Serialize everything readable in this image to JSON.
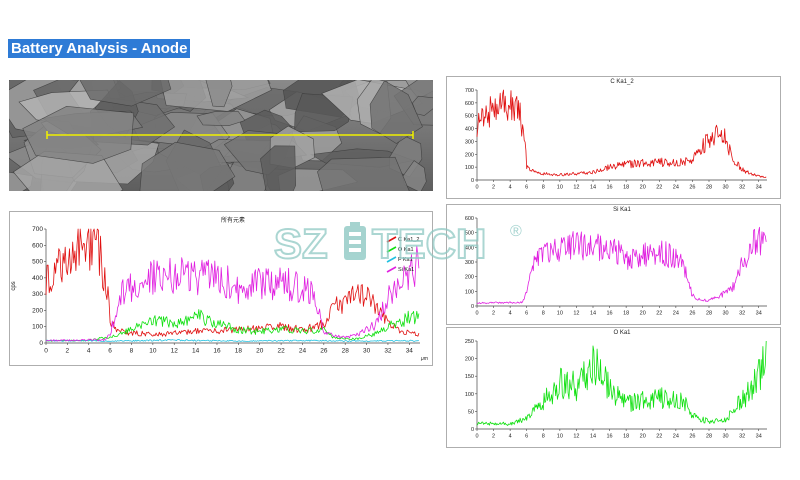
{
  "page_title": "Battery Analysis - Anode",
  "watermark": {
    "text_left": "SZ",
    "text_right": "TECH",
    "mark": "®"
  },
  "colors": {
    "title_bg": "#2e7bd6",
    "C": "#e01010",
    "O": "#10e010",
    "F": "#20c0e0",
    "Si": "#e020e0",
    "line_scan": "#f0f000",
    "watermark": "#8fc9c4"
  },
  "chart_data": [
    {
      "id": "combined",
      "type": "line",
      "title": "所有元素",
      "ylabel": "cps",
      "xunit": "μm",
      "xlim": [
        0,
        35
      ],
      "ylim": [
        0,
        700
      ],
      "xticks": [
        0,
        2,
        4,
        6,
        8,
        10,
        12,
        14,
        16,
        18,
        20,
        22,
        24,
        26,
        28,
        30,
        32,
        34
      ],
      "yticks": [
        0,
        100,
        200,
        300,
        400,
        500,
        600,
        700
      ],
      "legend_position": "right",
      "series": [
        {
          "name": "C Ka1_2",
          "color": "#e01010",
          "profile": [
            [
              0,
              380
            ],
            [
              1,
              450
            ],
            [
              2,
              560
            ],
            [
              3,
              600
            ],
            [
              4,
              620
            ],
            [
              5,
              560
            ],
            [
              5.8,
              300
            ],
            [
              6,
              120
            ],
            [
              7,
              70
            ],
            [
              10,
              50
            ],
            [
              14,
              70
            ],
            [
              18,
              80
            ],
            [
              20,
              90
            ],
            [
              22,
              100
            ],
            [
              24,
              80
            ],
            [
              26,
              120
            ],
            [
              27,
              220
            ],
            [
              28,
              260
            ],
            [
              29,
              300
            ],
            [
              30,
              300
            ],
            [
              31,
              200
            ],
            [
              32,
              120
            ],
            [
              33,
              80
            ],
            [
              34,
              60
            ],
            [
              34.8,
              50
            ]
          ]
        },
        {
          "name": "O Ka1",
          "color": "#10e010",
          "profile": [
            [
              0,
              15
            ],
            [
              4,
              15
            ],
            [
              6,
              40
            ],
            [
              8,
              80
            ],
            [
              10,
              140
            ],
            [
              12,
              120
            ],
            [
              14,
              170
            ],
            [
              16,
              120
            ],
            [
              18,
              80
            ],
            [
              20,
              70
            ],
            [
              22,
              90
            ],
            [
              24,
              70
            ],
            [
              26,
              80
            ],
            [
              27,
              30
            ],
            [
              29,
              25
            ],
            [
              31,
              60
            ],
            [
              32,
              100
            ],
            [
              33,
              120
            ],
            [
              34,
              160
            ],
            [
              34.8,
              160
            ]
          ]
        },
        {
          "name": "F Ka1",
          "color": "#20c0e0",
          "profile": [
            [
              0,
              15
            ],
            [
              6,
              12
            ],
            [
              12,
              18
            ],
            [
              18,
              12
            ],
            [
              24,
              15
            ],
            [
              30,
              12
            ],
            [
              34.8,
              14
            ]
          ]
        },
        {
          "name": "Si Ka1",
          "color": "#e020e0",
          "profile": [
            [
              0,
              15
            ],
            [
              5.5,
              20
            ],
            [
              6,
              60
            ],
            [
              7,
              300
            ],
            [
              8,
              350
            ],
            [
              10,
              400
            ],
            [
              12,
              420
            ],
            [
              14,
              390
            ],
            [
              16,
              420
            ],
            [
              18,
              330
            ],
            [
              20,
              360
            ],
            [
              22,
              370
            ],
            [
              24,
              340
            ],
            [
              25,
              290
            ],
            [
              26,
              80
            ],
            [
              27,
              40
            ],
            [
              28,
              35
            ],
            [
              29,
              45
            ],
            [
              30,
              80
            ],
            [
              31,
              120
            ],
            [
              32,
              280
            ],
            [
              33,
              380
            ],
            [
              34,
              420
            ],
            [
              34.8,
              480
            ]
          ]
        }
      ]
    },
    {
      "id": "c",
      "type": "line",
      "title": "C Ka1_2",
      "xlim": [
        0,
        35
      ],
      "ylim": [
        0,
        700
      ],
      "xticks": [
        0,
        2,
        4,
        6,
        8,
        10,
        12,
        14,
        16,
        18,
        20,
        22,
        24,
        26,
        28,
        30,
        32,
        34
      ],
      "yticks": [
        0,
        100,
        200,
        300,
        400,
        500,
        600,
        700
      ],
      "series": [
        {
          "name": "C Ka1_2",
          "color": "#e01010",
          "profile": [
            [
              0,
              420
            ],
            [
              1,
              470
            ],
            [
              2,
              560
            ],
            [
              3,
              600
            ],
            [
              4,
              610
            ],
            [
              5,
              560
            ],
            [
              5.8,
              300
            ],
            [
              6,
              100
            ],
            [
              7,
              60
            ],
            [
              8,
              50
            ],
            [
              10,
              40
            ],
            [
              12,
              50
            ],
            [
              14,
              60
            ],
            [
              16,
              100
            ],
            [
              18,
              120
            ],
            [
              20,
              130
            ],
            [
              22,
              140
            ],
            [
              24,
              130
            ],
            [
              26,
              160
            ],
            [
              27,
              260
            ],
            [
              28,
              300
            ],
            [
              29,
              350
            ],
            [
              30,
              330
            ],
            [
              31,
              150
            ],
            [
              32,
              80
            ],
            [
              33,
              50
            ],
            [
              34,
              30
            ],
            [
              34.8,
              20
            ]
          ]
        }
      ]
    },
    {
      "id": "si",
      "type": "line",
      "title": "Si Ka1",
      "xlim": [
        0,
        35
      ],
      "ylim": [
        0,
        600
      ],
      "xticks": [
        0,
        2,
        4,
        6,
        8,
        10,
        12,
        14,
        16,
        18,
        20,
        22,
        24,
        26,
        28,
        30,
        32,
        34
      ],
      "yticks": [
        0,
        100,
        200,
        300,
        400,
        500,
        600
      ],
      "series": [
        {
          "name": "Si Ka1",
          "color": "#e020e0",
          "profile": [
            [
              0,
              20
            ],
            [
              5.5,
              25
            ],
            [
              6,
              100
            ],
            [
              7,
              330
            ],
            [
              8,
              360
            ],
            [
              10,
              390
            ],
            [
              12,
              420
            ],
            [
              14,
              400
            ],
            [
              16,
              410
            ],
            [
              18,
              320
            ],
            [
              20,
              350
            ],
            [
              22,
              360
            ],
            [
              24,
              340
            ],
            [
              25,
              270
            ],
            [
              26,
              70
            ],
            [
              27,
              40
            ],
            [
              28,
              40
            ],
            [
              29,
              60
            ],
            [
              30,
              90
            ],
            [
              31,
              140
            ],
            [
              32,
              300
            ],
            [
              33,
              400
            ],
            [
              34,
              450
            ],
            [
              34.8,
              500
            ]
          ]
        }
      ]
    },
    {
      "id": "o",
      "type": "line",
      "title": "O Ka1",
      "xlim": [
        0,
        35
      ],
      "ylim": [
        0,
        250
      ],
      "xticks": [
        0,
        2,
        4,
        6,
        8,
        10,
        12,
        14,
        16,
        18,
        20,
        22,
        24,
        26,
        28,
        30,
        32,
        34
      ],
      "yticks": [
        0,
        50,
        100,
        150,
        200,
        250
      ],
      "series": [
        {
          "name": "O Ka1",
          "color": "#10e010",
          "profile": [
            [
              0,
              15
            ],
            [
              4,
              15
            ],
            [
              6,
              30
            ],
            [
              8,
              80
            ],
            [
              10,
              130
            ],
            [
              12,
              120
            ],
            [
              14,
              180
            ],
            [
              15,
              170
            ],
            [
              16,
              110
            ],
            [
              18,
              70
            ],
            [
              20,
              80
            ],
            [
              22,
              90
            ],
            [
              24,
              80
            ],
            [
              25,
              80
            ],
            [
              26,
              40
            ],
            [
              28,
              20
            ],
            [
              30,
              25
            ],
            [
              31,
              60
            ],
            [
              32,
              80
            ],
            [
              33,
              110
            ],
            [
              34,
              150
            ],
            [
              34.8,
              190
            ]
          ]
        }
      ]
    }
  ]
}
